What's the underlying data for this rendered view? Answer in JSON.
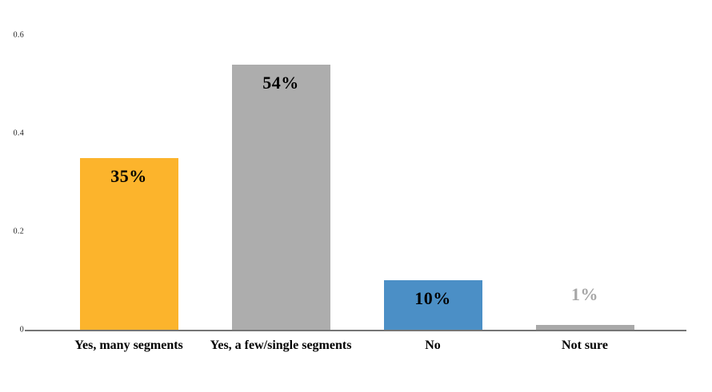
{
  "chart_data": {
    "type": "bar",
    "title": "",
    "xlabel": "",
    "ylabel": "",
    "categories": [
      "Yes, many segments",
      "Yes, a few/single segments",
      "No",
      "Not sure"
    ],
    "values": [
      0.35,
      0.54,
      0.1,
      0.01
    ],
    "data_labels": [
      "35%",
      "54%",
      "10%",
      "1%"
    ],
    "bar_colors": [
      "#FCB42C",
      "#ADADAD",
      "#4B8FC6",
      "#A9A9A9"
    ],
    "data_label_colors": [
      "#000000",
      "#000000",
      "#000000",
      "#A6A6A6"
    ],
    "data_label_placement": [
      "inside-top",
      "inside-top",
      "inside-top",
      "above"
    ],
    "y_ticks": [
      0,
      0.2,
      0.4,
      0.6
    ],
    "y_tick_labels": [
      "0",
      "0.2",
      "0.4",
      "0.6"
    ],
    "ylim": [
      0,
      0.655
    ],
    "grid": false,
    "legend": false,
    "axis_line_color": "#757575",
    "tick_label_color": "#1B1B1B",
    "category_label_color": "#000000",
    "background": "#FFFFFF"
  }
}
